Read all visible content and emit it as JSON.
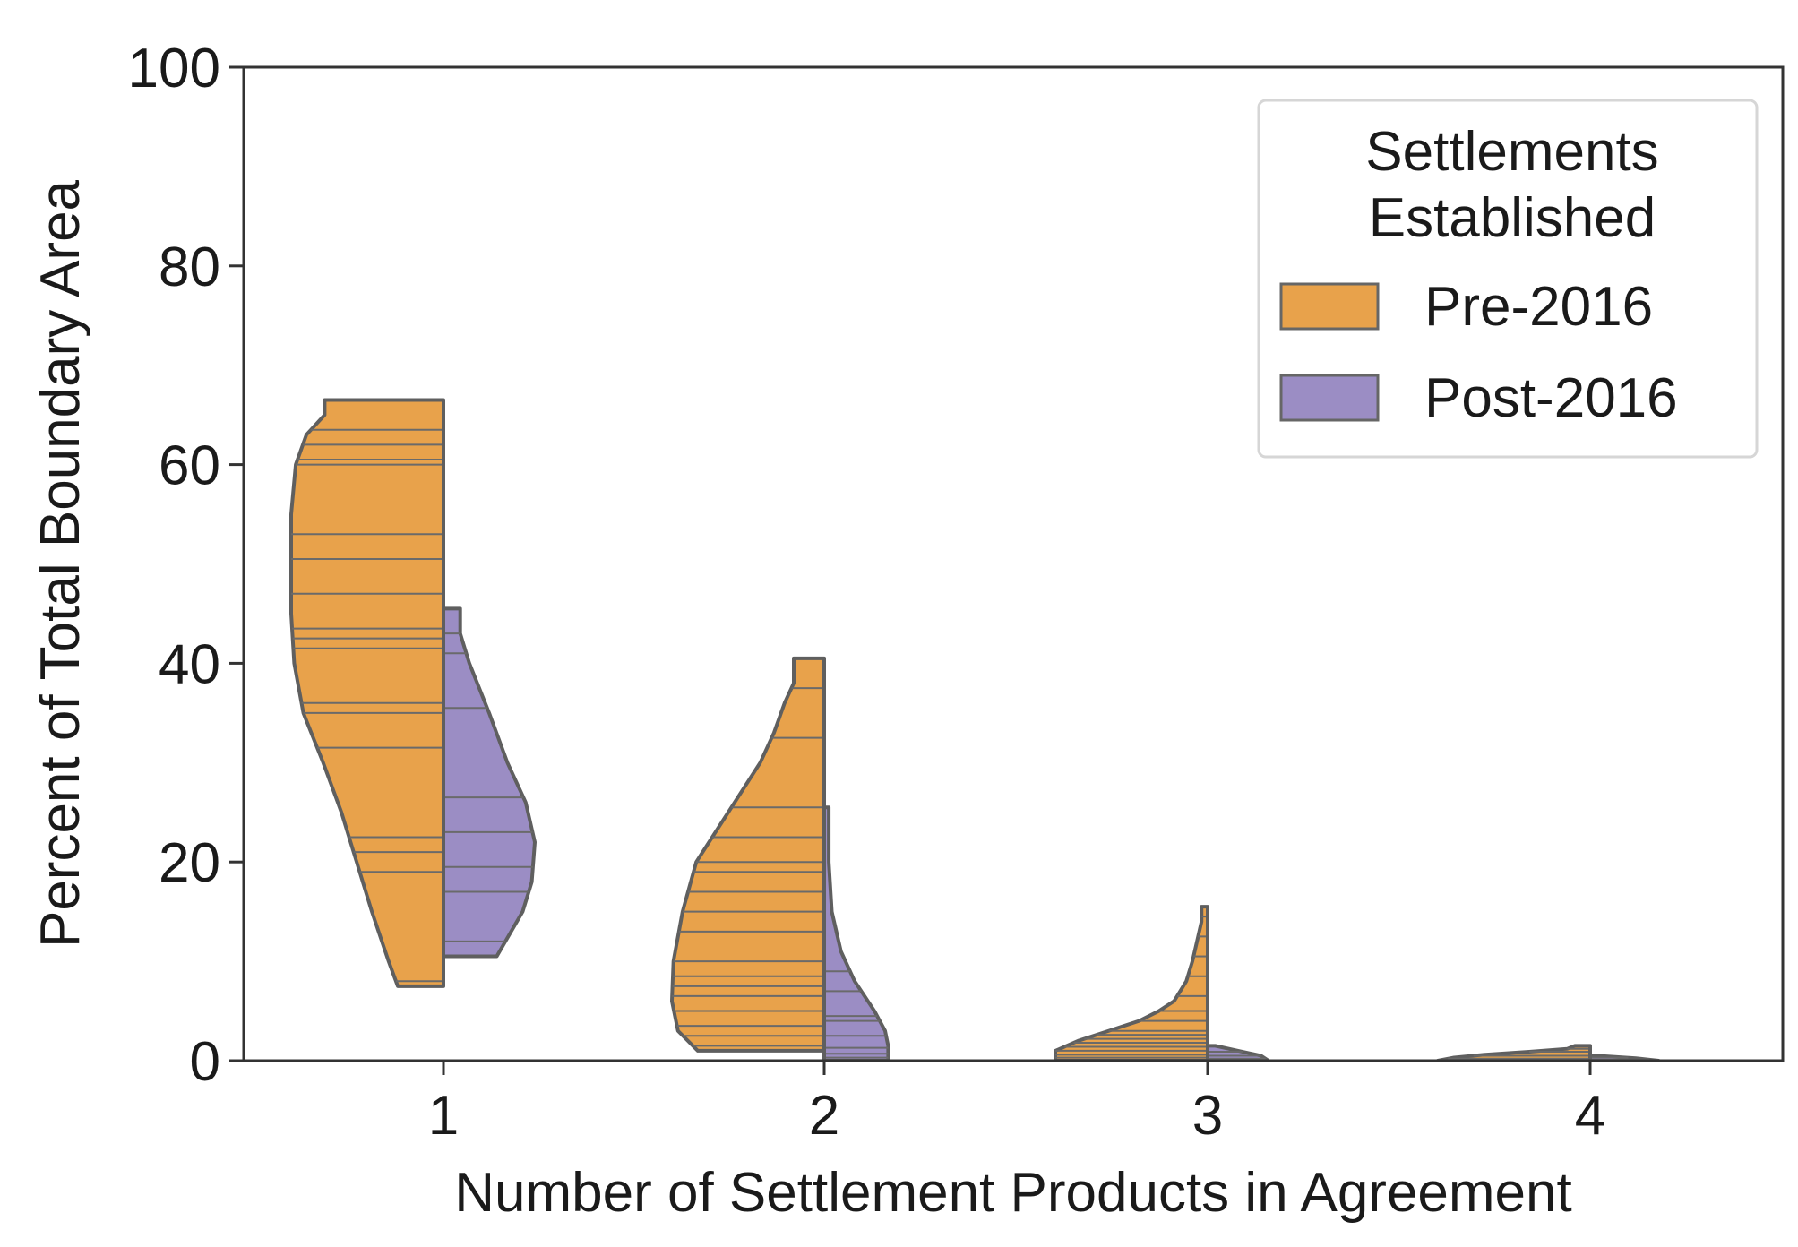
{
  "chart_data": {
    "type": "violin",
    "split": true,
    "inner": "stick",
    "title": "",
    "xlabel": "Number of Settlement Products in Agreement",
    "ylabel": "Percent of Total Boundary Area",
    "categories": [
      "1",
      "2",
      "3",
      "4"
    ],
    "ylim": [
      0,
      100
    ],
    "yticks": [
      0,
      20,
      40,
      60,
      80,
      100
    ],
    "grid": false,
    "legend": {
      "title_lines": [
        "Settlements",
        "Established"
      ],
      "placement": "top-right"
    },
    "series": [
      {
        "name": "Pre-2016",
        "color": "#e8a24b",
        "side": "left",
        "violins": [
          {
            "category": "1",
            "min": 7.5,
            "max": 66.5,
            "outline": [
              [
                7.5,
                0.3
              ],
              [
                10,
                0.36
              ],
              [
                15,
                0.47
              ],
              [
                20,
                0.57
              ],
              [
                25,
                0.67
              ],
              [
                30,
                0.79
              ],
              [
                35,
                0.92
              ],
              [
                40,
                0.98
              ],
              [
                45,
                1.0
              ],
              [
                50,
                1.0
              ],
              [
                55,
                1.0
              ],
              [
                60,
                0.97
              ],
              [
                63,
                0.9
              ],
              [
                65,
                0.78
              ],
              [
                66.5,
                0.78
              ]
            ],
            "sticks": [
              8,
              19,
              21,
              22.5,
              31.5,
              35,
              36,
              41.5,
              42.5,
              43.5,
              47,
              50.5,
              53,
              60,
              60.5,
              62,
              63.5
            ]
          },
          {
            "category": "2",
            "min": 1.0,
            "max": 40.5,
            "outline": [
              [
                1,
                0.83
              ],
              [
                3,
                0.96
              ],
              [
                6,
                1.0
              ],
              [
                10,
                0.99
              ],
              [
                15,
                0.93
              ],
              [
                20,
                0.84
              ],
              [
                25,
                0.63
              ],
              [
                30,
                0.42
              ],
              [
                33,
                0.33
              ],
              [
                36,
                0.26
              ],
              [
                38,
                0.2
              ],
              [
                40.5,
                0.2
              ]
            ],
            "sticks": [
              1.5,
              2.5,
              3.5,
              5,
              6.5,
              7.5,
              8.5,
              10,
              13,
              15,
              17,
              19,
              20,
              22.5,
              25.5,
              32.5,
              37.5
            ]
          },
          {
            "category": "3",
            "min": 0,
            "max": 15.5,
            "outline": [
              [
                0,
                1.0
              ],
              [
                1,
                1.0
              ],
              [
                2,
                0.85
              ],
              [
                3,
                0.65
              ],
              [
                4,
                0.45
              ],
              [
                5,
                0.32
              ],
              [
                6,
                0.22
              ],
              [
                8,
                0.14
              ],
              [
                10,
                0.1
              ],
              [
                12,
                0.07
              ],
              [
                14,
                0.04
              ],
              [
                15.5,
                0.04
              ]
            ],
            "sticks": [
              0.3,
              0.6,
              1.0,
              1.4,
              1.8,
              2.2,
              2.6,
              3.0,
              4.0,
              5.0,
              6.5,
              8.5,
              10.5,
              12.5,
              14.5
            ]
          },
          {
            "category": "4",
            "min": 0,
            "max": 1.5,
            "outline": [
              [
                0,
                1.0
              ],
              [
                0.3,
                0.9
              ],
              [
                0.6,
                0.7
              ],
              [
                0.9,
                0.4
              ],
              [
                1.2,
                0.15
              ],
              [
                1.5,
                0.1
              ]
            ],
            "sticks": [
              0.2,
              0.5,
              0.9,
              1.2
            ]
          }
        ]
      },
      {
        "name": "Post-2016",
        "color": "#9b8dc4",
        "side": "right",
        "violins": [
          {
            "category": "1",
            "min": 10.5,
            "max": 45.5,
            "outline": [
              [
                10.5,
                0.35
              ],
              [
                15,
                0.52
              ],
              [
                18,
                0.58
              ],
              [
                22,
                0.6
              ],
              [
                26,
                0.54
              ],
              [
                30,
                0.42
              ],
              [
                35,
                0.3
              ],
              [
                40,
                0.17
              ],
              [
                43,
                0.11
              ],
              [
                45.5,
                0.11
              ]
            ],
            "sticks": [
              12,
              17,
              19.5,
              23,
              26.5,
              35.5,
              41,
              43
            ]
          },
          {
            "category": "2",
            "min": 0,
            "max": 25.5,
            "outline": [
              [
                0,
                0.42
              ],
              [
                1.5,
                0.42
              ],
              [
                3,
                0.4
              ],
              [
                5,
                0.33
              ],
              [
                8,
                0.2
              ],
              [
                11,
                0.11
              ],
              [
                15,
                0.05
              ],
              [
                20,
                0.03
              ],
              [
                25.5,
                0.03
              ]
            ],
            "sticks": [
              0.3,
              0.7,
              1.3,
              2.5,
              4,
              4.5,
              7,
              9
            ]
          },
          {
            "category": "3",
            "min": 0,
            "max": 1.5,
            "outline": [
              [
                0,
                0.4
              ],
              [
                0.5,
                0.35
              ],
              [
                1,
                0.2
              ],
              [
                1.5,
                0.05
              ]
            ],
            "sticks": [
              0.2,
              0.5,
              0.9
            ]
          },
          {
            "category": "4",
            "min": 0,
            "max": 0.5,
            "outline": [
              [
                0,
                0.45
              ],
              [
                0.25,
                0.3
              ],
              [
                0.5,
                0.05
              ]
            ],
            "sticks": [
              0.1,
              0.3
            ]
          }
        ]
      }
    ]
  }
}
